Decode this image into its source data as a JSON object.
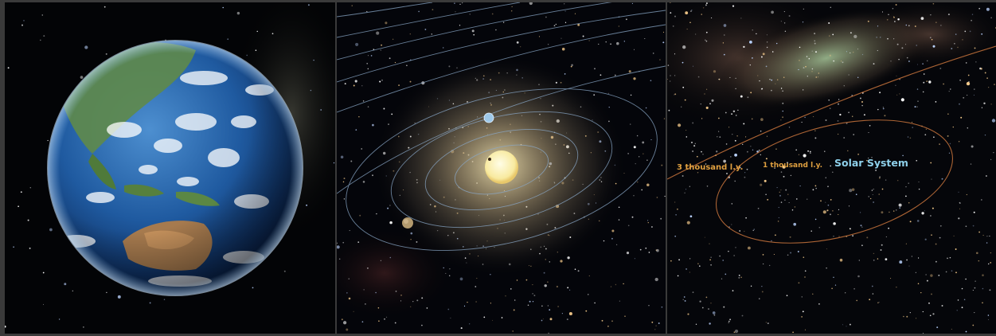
{
  "panels": [
    {
      "subject": "Earth"
    },
    {
      "subject": "Sun"
    },
    {
      "subject": "Milky Way"
    }
  ],
  "galaxy_view": {
    "labels": {
      "three_thousand": "3 thousand l.y.",
      "one_thousand": "1 thousand l.y.",
      "solar_system": "Solar System"
    }
  },
  "colors": {
    "background": "#050608",
    "orbit": "#8aa8c8",
    "scale_ring": "#c8743c",
    "scale_label": "#e0a040",
    "solar_system_label": "#8ed0ea"
  }
}
